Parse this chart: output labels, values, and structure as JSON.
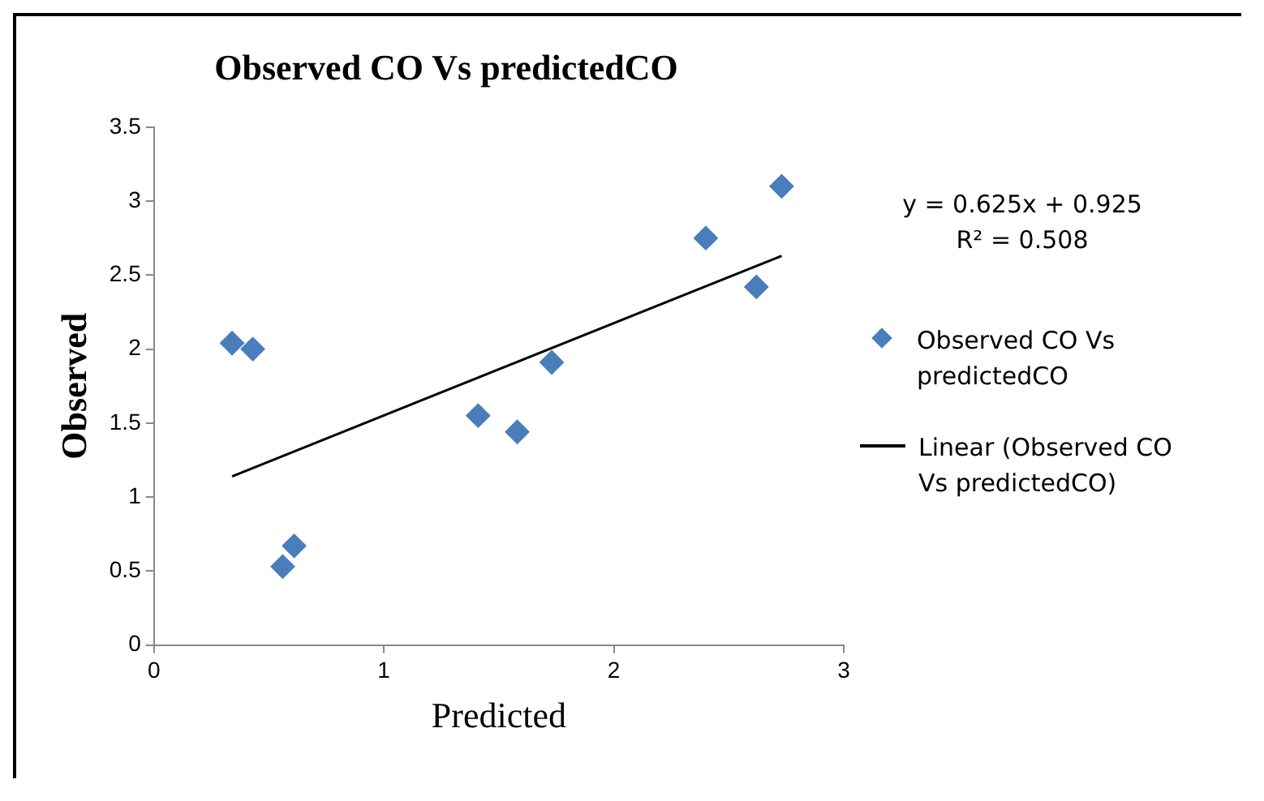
{
  "chart_data": {
    "type": "scatter",
    "title": "Observed CO Vs predictedCO",
    "xlabel": "Predicted",
    "ylabel": "Observed",
    "xlim": [
      0,
      3
    ],
    "xticks": [
      0,
      1,
      2,
      3
    ],
    "ylim": [
      0,
      3.5
    ],
    "yticks": [
      0,
      0.5,
      1,
      1.5,
      2,
      2.5,
      3,
      3.5
    ],
    "legend": "right",
    "marker": "diamond",
    "annotations": [
      "y = 0.625x + 0.925",
      "R² = 0.508"
    ],
    "series": [
      {
        "name": "Observed CO Vs predictedCO",
        "color": "#4a7ebb",
        "x": [
          0.34,
          0.43,
          0.56,
          0.61,
          1.41,
          1.58,
          1.73,
          2.4,
          2.62,
          2.73
        ],
        "values": [
          2.04,
          2.0,
          0.53,
          0.67,
          1.55,
          1.44,
          1.91,
          2.75,
          2.42,
          3.1
        ]
      },
      {
        "name": "Linear (Observed CO Vs predictedCO)",
        "type": "line",
        "marker": "none",
        "color": "#000000",
        "x": [
          0.34,
          2.73
        ],
        "values": [
          1.14,
          2.63
        ]
      }
    ]
  }
}
